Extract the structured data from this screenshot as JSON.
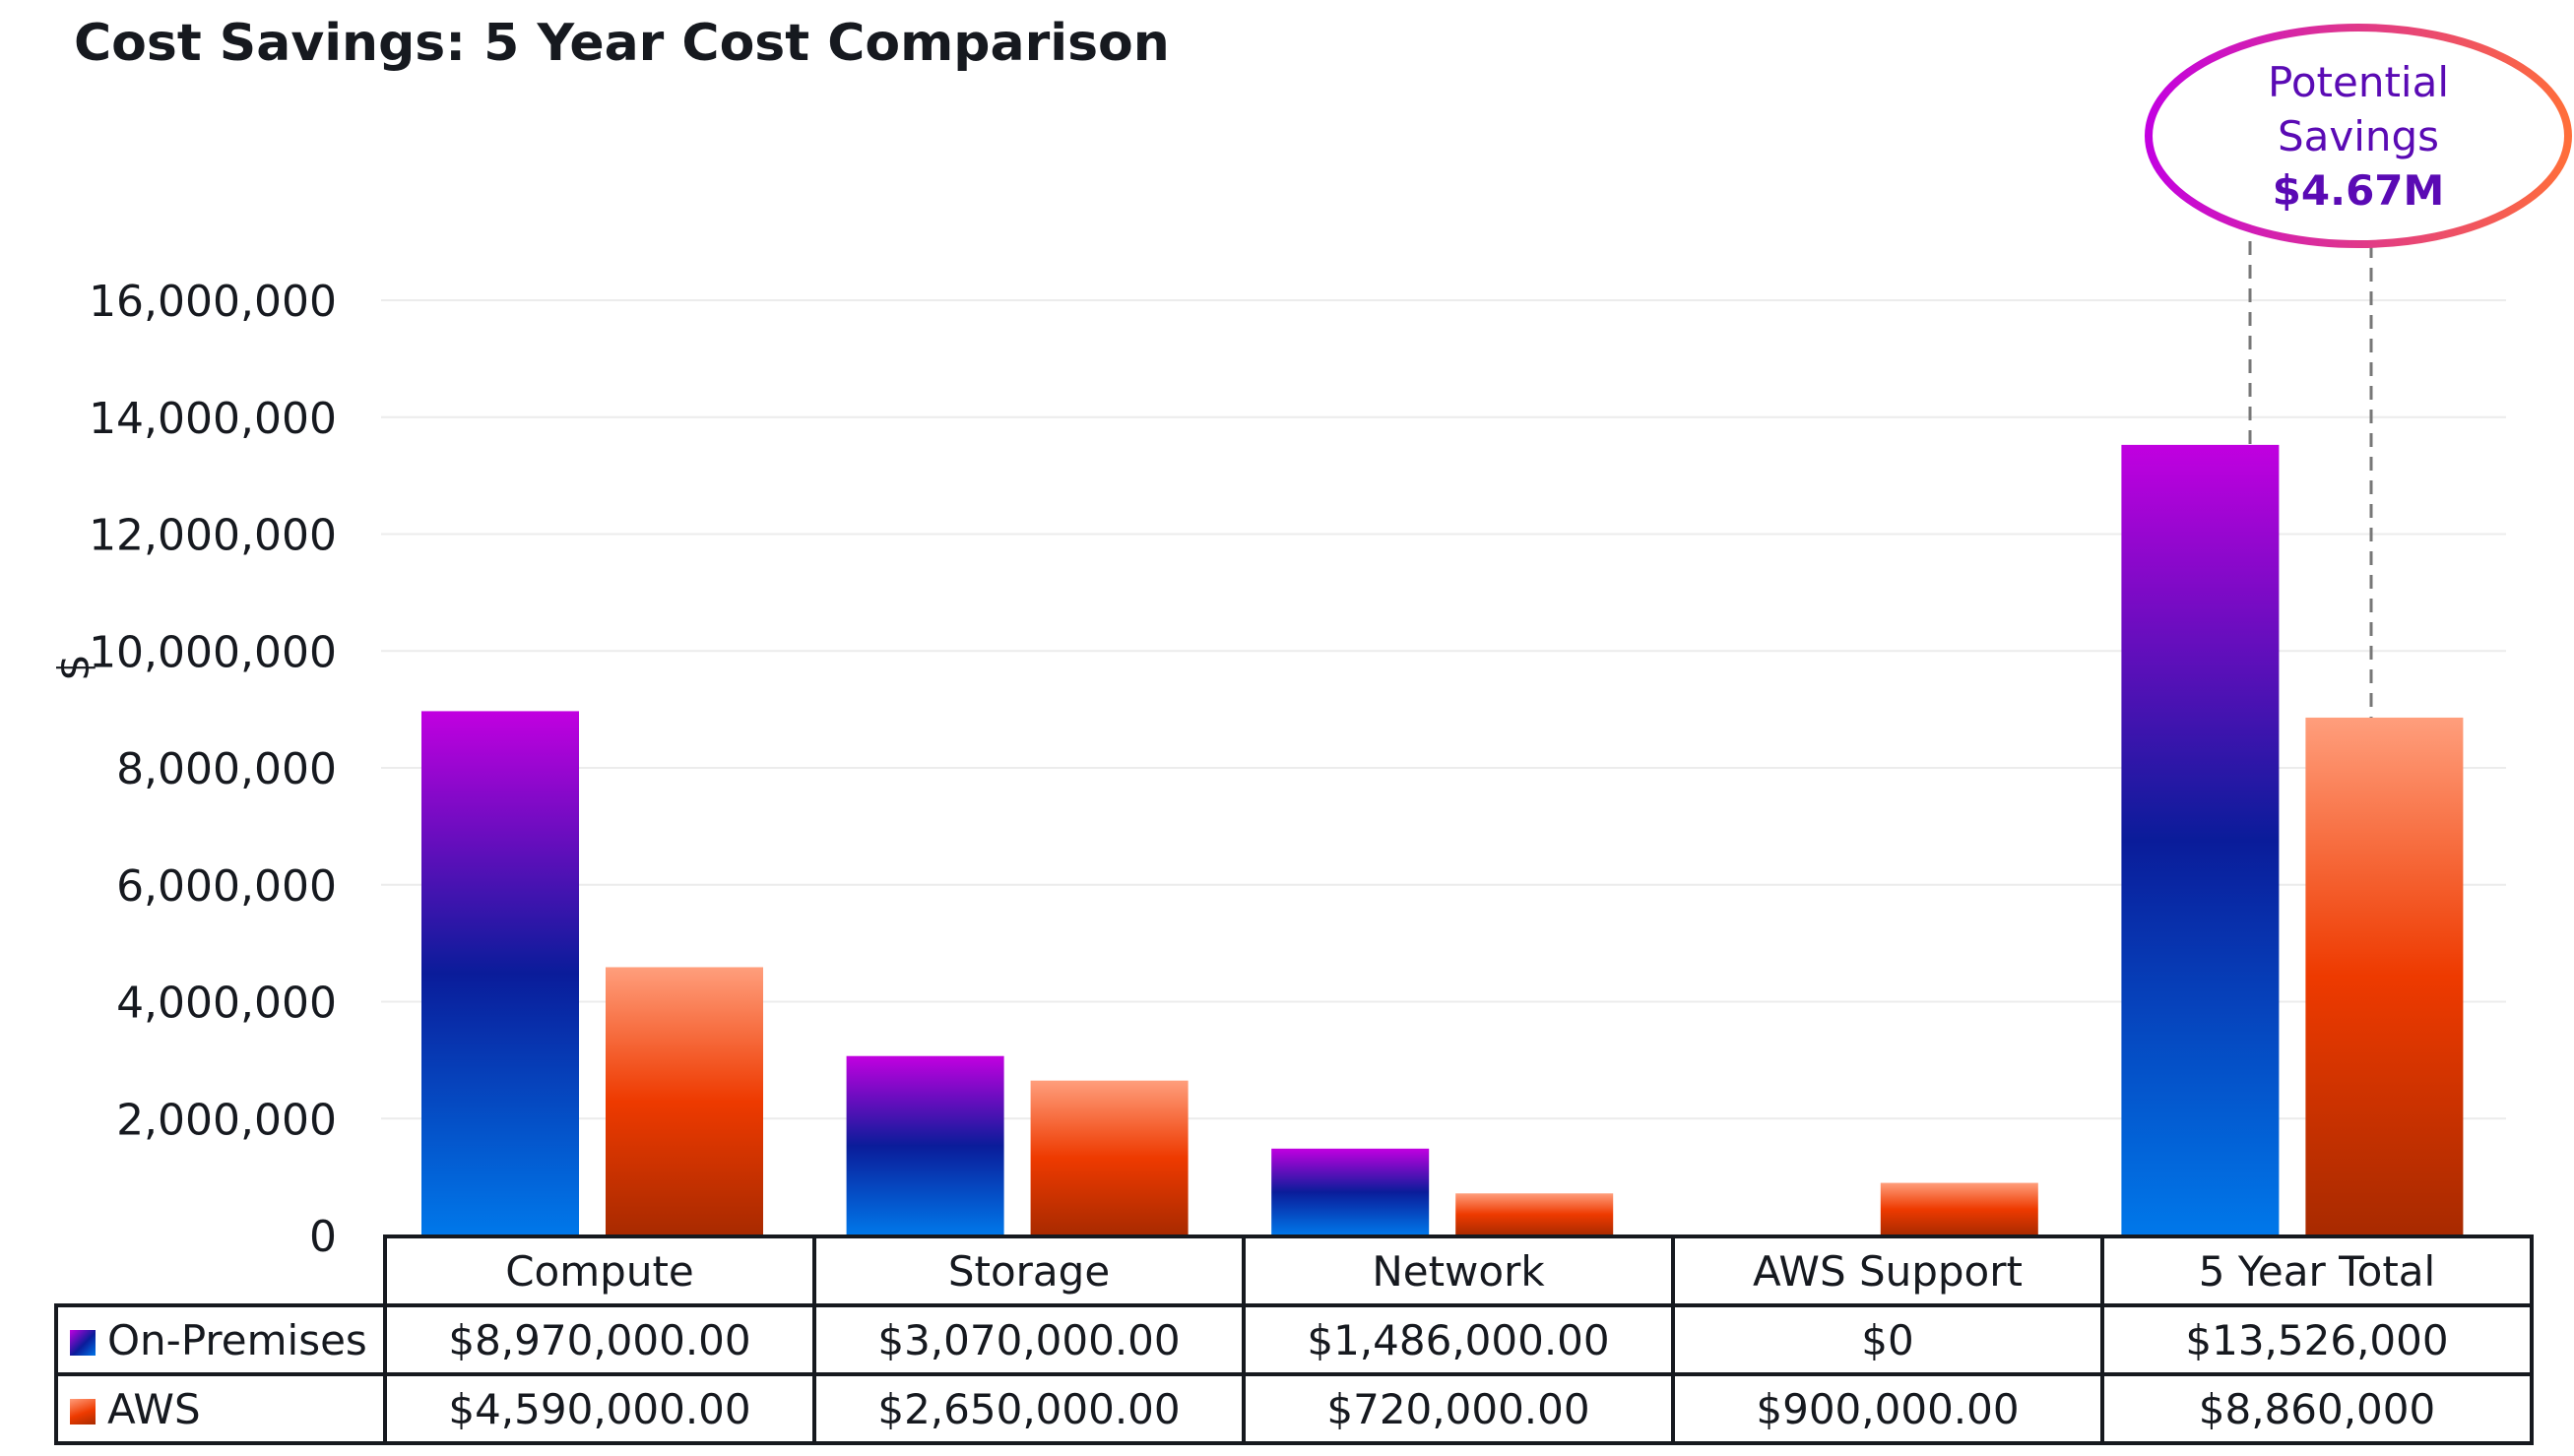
{
  "chart_data": {
    "type": "bar",
    "title": "Cost Savings: 5 Year Cost Comparison",
    "ylabel": "$",
    "xlabel": "",
    "ylim": [
      0,
      16000000
    ],
    "yticks": [
      0,
      2000000,
      4000000,
      6000000,
      8000000,
      10000000,
      12000000,
      14000000,
      16000000
    ],
    "ytick_labels": [
      "0",
      "2,000,000",
      "4,000,000",
      "6,000,000",
      "8,000,000",
      "10,000,000",
      "12,000,000",
      "14,000,000",
      "16,000,000"
    ],
    "grid": true,
    "categories": [
      "Compute",
      "Storage",
      "Network",
      "AWS Support",
      "5 Year Total"
    ],
    "series": [
      {
        "name": "On-Premises",
        "values": [
          8970000,
          3070000,
          1486000,
          0,
          13526000
        ],
        "color": "#0a1c9a",
        "labels": [
          "$8,970,000.00",
          "$3,070,000.00",
          "$1,486,000.00",
          "$0",
          "$13,526,000"
        ]
      },
      {
        "name": "AWS",
        "values": [
          4590000,
          2650000,
          720000,
          900000,
          8860000
        ],
        "color": "#ee3a00",
        "labels": [
          "$4,590,000.00",
          "$2,650,000.00",
          "$720,000.00",
          "$900,000.00",
          "$8,860,000"
        ]
      }
    ],
    "legend": "data-table",
    "annotation": {
      "line1": "Potential",
      "line2": "Savings",
      "value": "$4.67M",
      "color": "#5a0ab4"
    }
  }
}
